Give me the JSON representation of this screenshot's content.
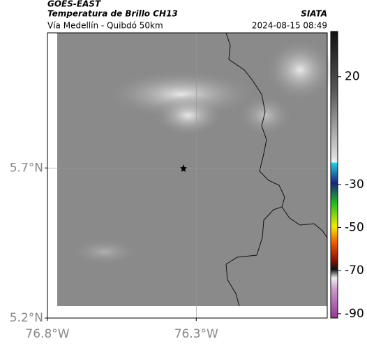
{
  "header": {
    "source": "GOES-EAST",
    "title": "Temperatura de Brillo CH13",
    "subtitle": "Vía Medellín - Quibdó 50km",
    "institution": "SIATA",
    "timestamp": "2024-08-15 08:49"
  },
  "map": {
    "lat_lim": [
      5.2,
      6.15
    ],
    "lon_lim": [
      -76.8,
      -75.86
    ],
    "lat_ticks": [
      {
        "value": 5.7,
        "label": "5.7°N"
      },
      {
        "value": 5.2,
        "label": "5.2°N"
      }
    ],
    "lon_ticks": [
      {
        "value": -76.8,
        "label": "76.8°W"
      },
      {
        "value": -76.3,
        "label": "76.3°W"
      }
    ]
  },
  "colorbar": {
    "lim": [
      -92,
      41
    ],
    "ticks": [
      20,
      -30,
      -50,
      -70,
      -90
    ]
  }
}
